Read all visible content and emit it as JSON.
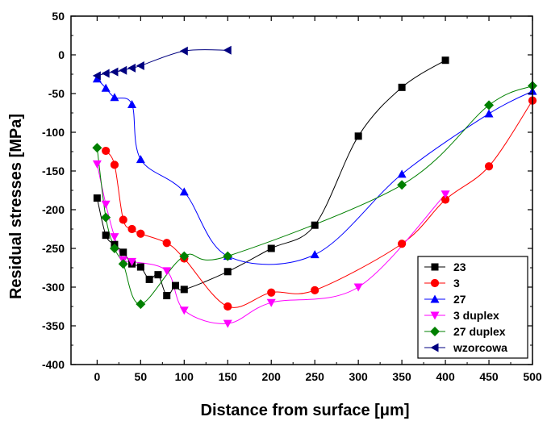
{
  "chart_data": {
    "type": "scatter",
    "title": "",
    "xlabel": "Distance from surface [μm]",
    "ylabel": "Residual stresses [MPa]",
    "xlim": [
      -30,
      500
    ],
    "ylim": [
      -400,
      50
    ],
    "xticks": [
      0,
      50,
      100,
      150,
      200,
      250,
      300,
      350,
      400,
      450,
      500
    ],
    "yticks": [
      50,
      0,
      -50,
      -100,
      -150,
      -200,
      -250,
      -300,
      -350,
      -400
    ],
    "grid": false,
    "legend_position": "bottom-right",
    "series": [
      {
        "name": "23",
        "color": "#000000",
        "marker": "square",
        "x": [
          0,
          10,
          20,
          30,
          40,
          50,
          60,
          70,
          80,
          90,
          100,
          150,
          200,
          250,
          300,
          350,
          400
        ],
        "y": [
          -185,
          -233,
          -245,
          -255,
          -270,
          -274,
          -290,
          -284,
          -311,
          -298,
          -303,
          -280,
          -250,
          -220,
          -105,
          -42,
          -7
        ]
      },
      {
        "name": "3",
        "color": "#ff0000",
        "marker": "circle",
        "x": [
          10,
          20,
          30,
          40,
          50,
          80,
          100,
          150,
          200,
          250,
          350,
          400,
          450,
          500
        ],
        "y": [
          -124,
          -142,
          -213,
          -225,
          -231,
          -243,
          -263,
          -325,
          -307,
          -304,
          -244,
          -187,
          -144,
          -59
        ]
      },
      {
        "name": "27",
        "color": "#0000ff",
        "marker": "triangle-up",
        "x": [
          0,
          10,
          20,
          40,
          50,
          100,
          150,
          250,
          350,
          450,
          500
        ],
        "y": [
          -31,
          -43,
          -55,
          -64,
          -135,
          -177,
          -260,
          -258,
          -154,
          -76,
          -47
        ]
      },
      {
        "name": "3 duplex",
        "color": "#ff00ff",
        "marker": "triangle-down",
        "x": [
          0,
          10,
          20,
          30,
          40,
          80,
          100,
          150,
          200,
          300,
          400
        ],
        "y": [
          -141,
          -193,
          -235,
          -265,
          -267,
          -279,
          -330,
          -347,
          -320,
          -300,
          -180
        ]
      },
      {
        "name": "27 duplex",
        "color": "#008000",
        "marker": "diamond",
        "x": [
          0,
          10,
          20,
          30,
          50,
          100,
          150,
          350,
          450,
          500
        ],
        "y": [
          -120,
          -210,
          -250,
          -270,
          -322,
          -260,
          -260,
          -168,
          -65,
          -40
        ]
      },
      {
        "name": "wzorcowa",
        "color": "#000080",
        "marker": "triangle-left",
        "x": [
          0,
          10,
          20,
          30,
          40,
          50,
          100,
          150
        ],
        "y": [
          -27,
          -24,
          -22,
          -20,
          -17,
          -14,
          5,
          6
        ]
      }
    ]
  }
}
